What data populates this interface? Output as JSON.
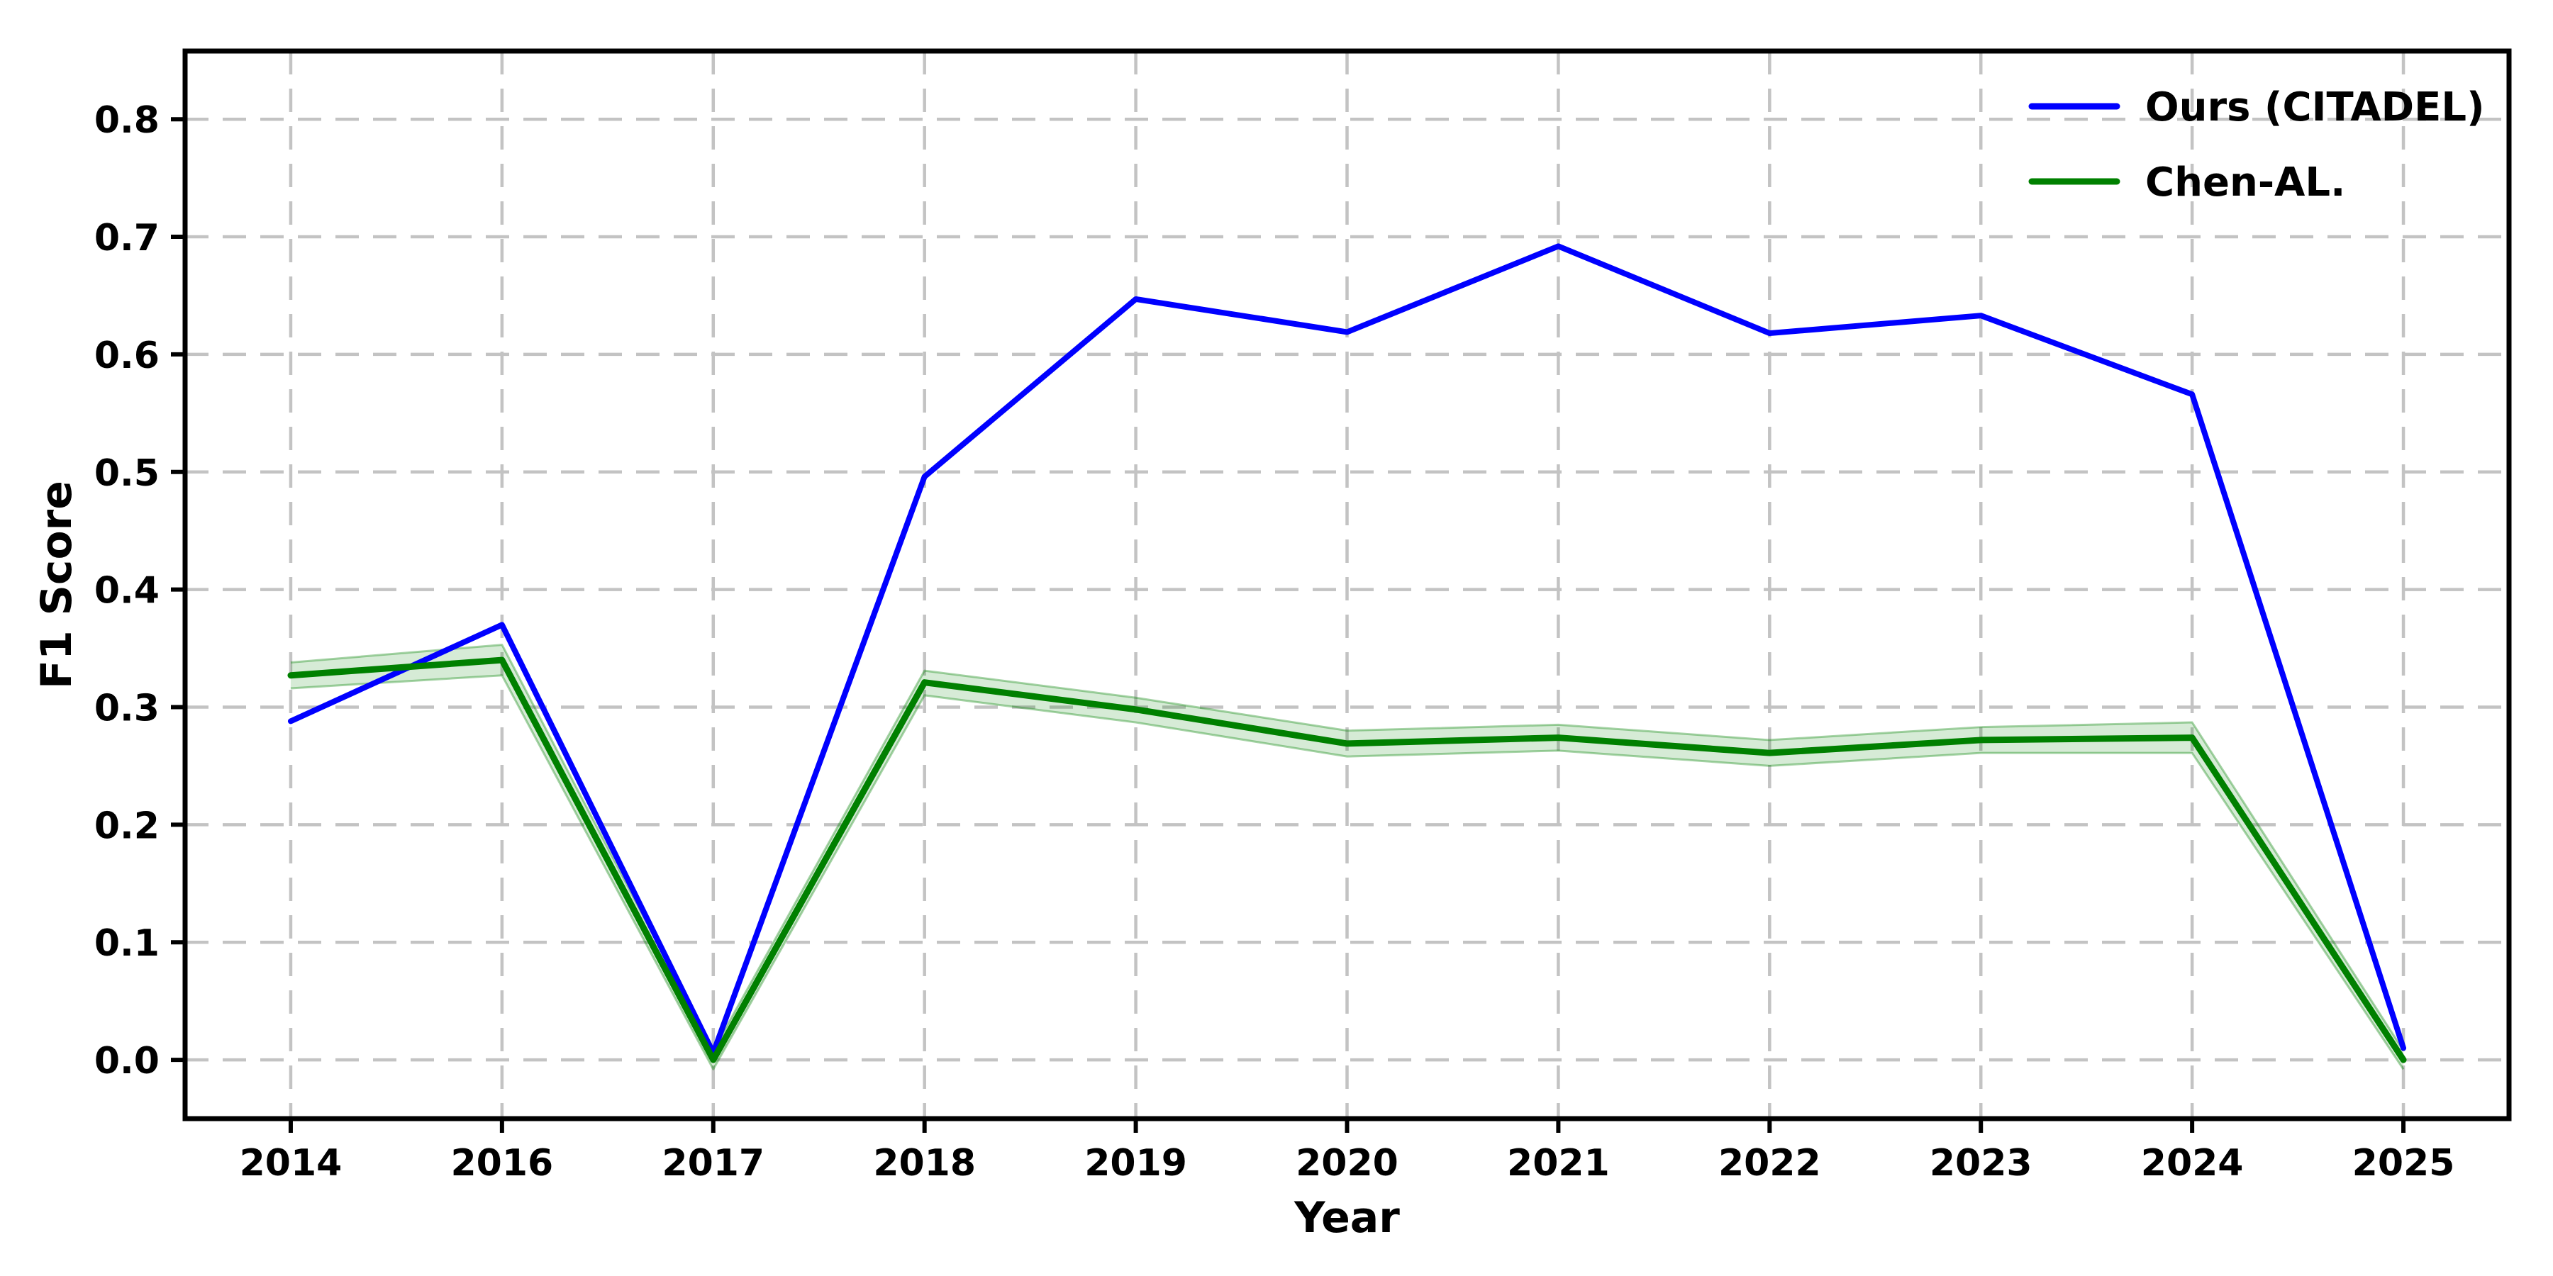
{
  "figure": {
    "background": "#ffffff"
  },
  "colors": {
    "grid": "#c3c3c3",
    "spine": "#000000",
    "tick": "#000000",
    "text": "#000000",
    "series_ours": "#0000ff",
    "series_chen": "#008000",
    "band_fill": "#008000"
  },
  "chart_data": {
    "type": "line",
    "title": "",
    "xlabel": "Year",
    "ylabel": "F1 Score",
    "categories": [
      "2014",
      "2016",
      "2017",
      "2018",
      "2019",
      "2020",
      "2021",
      "2022",
      "2023",
      "2024",
      "2025"
    ],
    "ylim": [
      -0.05,
      0.858
    ],
    "yticks": [
      0.0,
      0.1,
      0.2,
      0.3,
      0.4,
      0.5,
      0.6,
      0.7,
      0.8
    ],
    "ytick_labels": [
      "0.0",
      "0.1",
      "0.2",
      "0.3",
      "0.4",
      "0.5",
      "0.6",
      "0.7",
      "0.8"
    ],
    "grid": true,
    "grid_style": "dashed",
    "legend": {
      "position": "upper right",
      "frame": false
    },
    "series": [
      {
        "name": "Ours (CITADEL)",
        "color": "#0000ff",
        "line_width": 8,
        "values": [
          0.288,
          0.37,
          0.006,
          0.496,
          0.647,
          0.619,
          0.692,
          0.618,
          0.633,
          0.566,
          0.01
        ]
      },
      {
        "name": "Chen-AL.",
        "color": "#008000",
        "line_width": 9,
        "values": [
          0.327,
          0.34,
          0.0,
          0.321,
          0.298,
          0.269,
          0.274,
          0.261,
          0.272,
          0.274,
          0.0
        ],
        "band_lower": [
          0.316,
          0.327,
          -0.008,
          0.31,
          0.287,
          0.258,
          0.263,
          0.25,
          0.261,
          0.261,
          -0.008
        ],
        "band_upper": [
          0.338,
          0.353,
          0.008,
          0.331,
          0.308,
          0.28,
          0.285,
          0.272,
          0.283,
          0.287,
          0.008
        ],
        "band_fill_opacity": 0.16,
        "band_edge_opacity": 0.35
      }
    ]
  }
}
